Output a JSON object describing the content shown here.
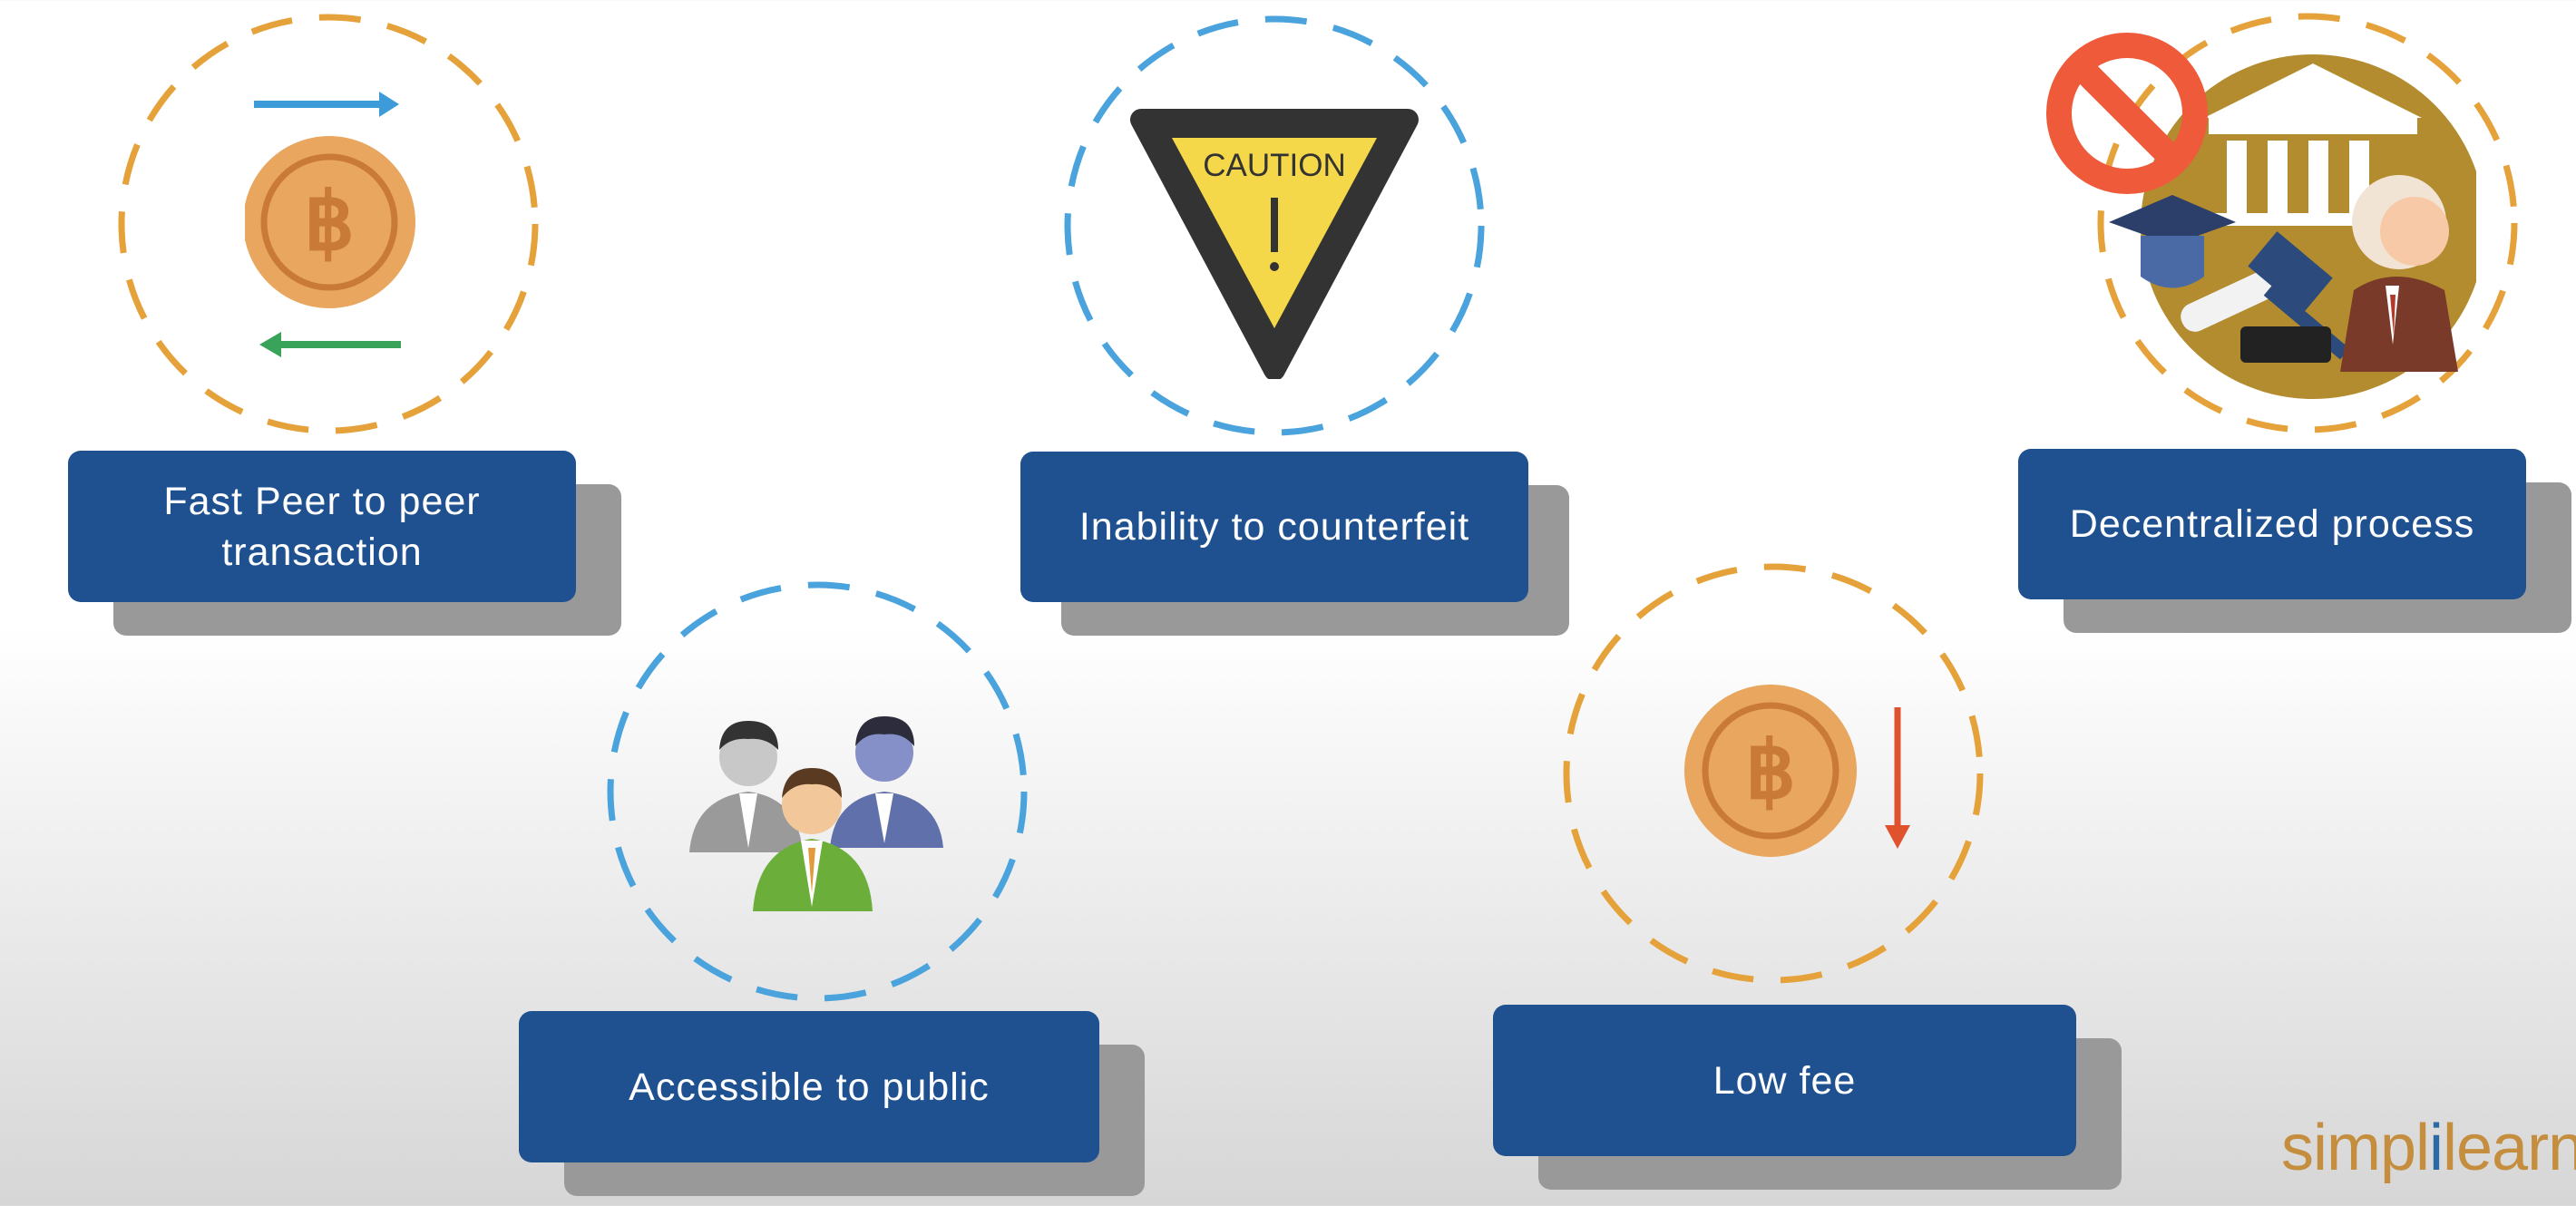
{
  "features": [
    {
      "id": "fast-peer",
      "label": "Fast Peer to peer transaction",
      "ring_color": "#e5a23a",
      "icon": "bitcoin-exchange-arrows-icon"
    },
    {
      "id": "counterfeit",
      "label": "Inability to counterfeit",
      "ring_color": "#4aa3dc",
      "icon": "caution-sign-icon",
      "sign_text": "CAUTION"
    },
    {
      "id": "decentralized",
      "label": "Decentralized process",
      "ring_color": "#e5a23a",
      "icon": "no-central-authority-icon"
    },
    {
      "id": "accessible",
      "label": "Accessible to public",
      "ring_color": "#4aa3dc",
      "icon": "people-group-icon"
    },
    {
      "id": "low-fee",
      "label": "Low fee",
      "ring_color": "#e5a23a",
      "icon": "bitcoin-down-arrow-icon"
    }
  ],
  "colors": {
    "label_bg": "#1f5190",
    "label_shadow": "#999999",
    "coin": "#e8a65f",
    "arrow_blue": "#3d9bd9",
    "arrow_green": "#3aa35a",
    "arrow_red": "#e0522d",
    "caution_yellow": "#f5d84a",
    "prohibit_red": "#ee5a3a"
  },
  "logo": {
    "part1": "simpl",
    "part2": "i",
    "part3": "learn"
  }
}
